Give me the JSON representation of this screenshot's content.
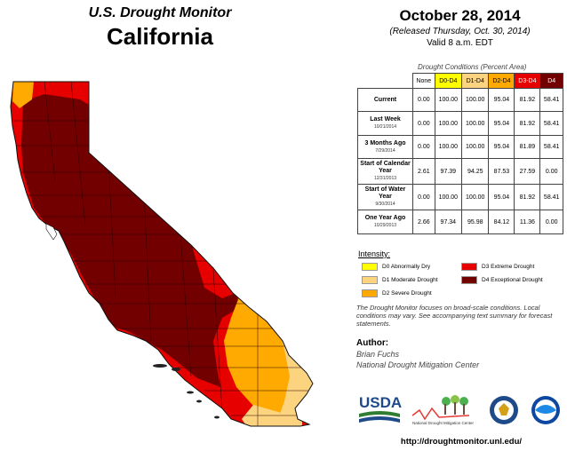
{
  "header": {
    "top_title": "U.S. Drought Monitor",
    "state": "California",
    "date": "October 28, 2014",
    "released": "(Released Thursday, Oct. 30, 2014)",
    "valid": "Valid 8 a.m. EDT"
  },
  "table": {
    "caption": "Drought Conditions (Percent Area)",
    "columns": [
      "None",
      "D0-D4",
      "D1-D4",
      "D2-D4",
      "D3-D4",
      "D4"
    ],
    "column_colors": [
      "#ffffff",
      "#ffff00",
      "#fcd37f",
      "#ffaa00",
      "#e60000",
      "#730000"
    ],
    "rows": [
      {
        "label": "Current",
        "sub": "",
        "values": [
          "0.00",
          "100.00",
          "100.00",
          "95.04",
          "81.92",
          "58.41"
        ]
      },
      {
        "label": "Last Week",
        "sub": "10/21/2014",
        "values": [
          "0.00",
          "100.00",
          "100.00",
          "95.04",
          "81.92",
          "58.41"
        ]
      },
      {
        "label": "3 Months Ago",
        "sub": "7/29/2014",
        "values": [
          "0.00",
          "100.00",
          "100.00",
          "95.04",
          "81.89",
          "58.41"
        ]
      },
      {
        "label": "Start of Calendar Year",
        "sub": "12/31/2013",
        "values": [
          "2.61",
          "97.39",
          "94.25",
          "87.53",
          "27.59",
          "0.00"
        ]
      },
      {
        "label": "Start of Water Year",
        "sub": "9/30/2014",
        "values": [
          "0.00",
          "100.00",
          "100.00",
          "95.04",
          "81.92",
          "58.41"
        ]
      },
      {
        "label": "One Year Ago",
        "sub": "10/29/2013",
        "values": [
          "2.66",
          "97.34",
          "95.98",
          "84.12",
          "11.36",
          "0.00"
        ]
      }
    ]
  },
  "legend": {
    "title": "Intensity:",
    "items": [
      {
        "label": "D0 Abnormally Dry",
        "color": "#ffff00"
      },
      {
        "label": "D1 Moderate Drought",
        "color": "#fcd37f"
      },
      {
        "label": "D2 Severe Drought",
        "color": "#ffaa00"
      },
      {
        "label": "D3 Extreme Drought",
        "color": "#e60000"
      },
      {
        "label": "D4 Exceptional Drought",
        "color": "#730000"
      }
    ]
  },
  "note": "The Drought Monitor focuses on broad-scale conditions. Local conditions may vary. See accompanying text summary for forecast statements.",
  "author": {
    "label": "Author:",
    "name": "Brian Fuchs",
    "org": "National Drought Mitigation Center"
  },
  "logos": {
    "usda": "USDA",
    "ndmc": "National Drought Mitigation Center"
  },
  "url": "http://droughtmonitor.unl.edu/",
  "colors": {
    "d0": "#ffff00",
    "d1": "#fcd37f",
    "d2": "#ffaa00",
    "d3": "#e60000",
    "d4": "#730000",
    "border": "#3a0000"
  }
}
